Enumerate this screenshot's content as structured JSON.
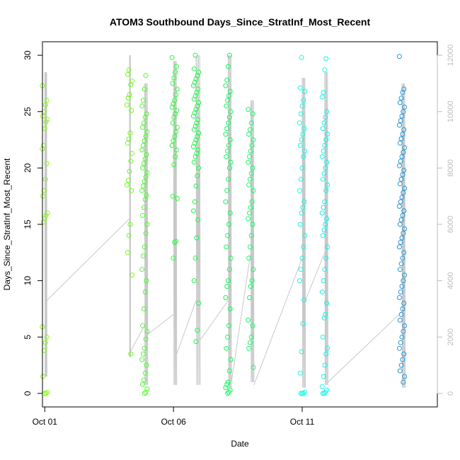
{
  "chart_data": {
    "type": "scatter",
    "title": "ATOM3 Southbound Days_Since_StratInf_Most_Recent",
    "xlabel": "Date",
    "ylabel": "Days_Since_StratInf_Most_Recent",
    "xlim": [
      "2014-09-30T21:50",
      "2014-10-16T06:00"
    ],
    "ylim": [
      -1.2,
      31.2
    ],
    "y2lim": [
      -480,
      12480
    ],
    "x_ticks": [
      {
        "label": "Oct 01",
        "date": "2014-10-01"
      },
      {
        "label": "Oct 06",
        "date": "2014-10-06"
      },
      {
        "label": "Oct 11",
        "date": "2014-10-11"
      }
    ],
    "y_ticks": [
      0,
      5,
      10,
      15,
      20,
      25,
      30
    ],
    "y2_ticks": [
      0,
      2000,
      4000,
      6000,
      8000,
      10000,
      12000
    ],
    "grid": false,
    "legend": "none",
    "marker": "open-circle",
    "line_color": "#c8c8c8",
    "point_colors_note_hex": [
      "#7fff00",
      "#00ff7f",
      "#00ffff",
      "#0080ff"
    ],
    "point_groups": [
      {
        "date": "2014-10-01T00:00",
        "color": "#84fb14",
        "values": [
          27.3,
          26.0,
          25.6,
          25.0,
          24.6,
          24.3,
          24.1,
          23.5,
          22.0,
          21.7,
          20.4,
          19.0,
          18.0,
          17.5,
          16.0,
          15.8,
          15.5,
          15.2,
          5.9,
          5.0,
          4.5,
          3.8,
          1.5,
          0.1,
          0.0,
          0.0
        ]
      },
      {
        "date": "2014-10-04T07:00",
        "color": "#6ffb1e",
        "values": [
          28.7,
          28.3,
          27.7,
          27.4,
          26.5,
          26.2,
          25.6,
          25.1,
          23.1,
          22.6,
          22.2,
          21.3,
          20.6,
          19.7,
          18.9,
          18.5,
          18.0,
          15.0,
          14.0,
          12.5,
          10.5,
          3.5
        ]
      },
      {
        "date": "2014-10-04T21:00",
        "color": "#4cfb2d",
        "values": [
          28.2,
          27.0,
          26.0,
          25.5,
          24.8,
          24.5,
          24.0,
          23.6,
          23.2,
          22.8,
          22.4,
          22.0,
          21.6,
          21.2,
          20.8,
          20.4,
          20.0,
          19.6,
          19.2,
          18.8,
          18.4,
          18.0,
          17.6,
          17.2,
          16.5,
          15.8,
          15.0,
          14.2,
          13.0,
          12.2,
          11.0,
          10.0,
          9.0,
          7.5,
          6.0,
          5.5,
          4.8,
          4.0,
          3.5,
          3.0,
          2.5,
          1.8,
          1.2,
          0.8,
          0.4,
          0.1,
          0.0
        ]
      },
      {
        "date": "2014-10-06T01:00",
        "color": "#2cfb3d",
        "values": [
          29.8,
          29.0,
          28.5,
          28.0,
          27.5,
          27.0,
          26.5,
          26.0,
          25.7,
          25.4,
          25.1,
          24.8,
          24.5,
          24.0,
          23.6,
          23.2,
          22.8,
          22.4,
          22.0,
          21.6,
          21.0,
          20.3,
          17.5,
          17.3,
          13.5,
          13.4,
          12.0
        ]
      },
      {
        "date": "2014-10-06T21:00",
        "color": "#1ffb4a",
        "values": [
          30.0,
          28.8,
          28.5,
          28.2,
          27.9,
          27.6,
          27.3,
          27.0,
          26.7,
          26.4,
          26.1,
          25.8,
          25.5,
          25.2,
          24.9,
          24.6,
          24.3,
          24.0,
          23.7,
          23.4,
          23.1,
          22.8,
          22.5,
          22.2,
          21.9,
          21.6,
          21.3,
          21.0,
          20.5,
          20.0,
          19.3,
          18.4,
          17.0,
          16.2,
          15.4,
          13.8,
          12.0,
          10.0,
          8.0,
          5.6,
          4.6
        ]
      },
      {
        "date": "2014-10-08T03:00",
        "color": "#0ffb5e",
        "values": [
          30.0,
          29.0,
          27.8,
          27.3,
          26.8,
          26.4,
          26.0,
          25.5,
          25.0,
          24.5,
          24.0,
          23.5,
          23.0,
          22.5,
          22.0,
          21.5,
          21.0,
          20.5,
          20.0,
          19.0,
          18.0,
          17.0,
          16.0,
          15.0,
          14.0,
          13.0,
          12.0,
          11.0,
          10.0,
          9.5,
          8.5,
          7.5,
          6.0,
          5.0,
          4.0,
          3.0,
          2.0,
          1.0,
          0.8,
          0.5,
          0.3,
          0.1,
          0.0
        ]
      },
      {
        "date": "2014-10-09T00:00",
        "color": "#14fb6e",
        "values": [
          25.2,
          24.8,
          24.0,
          23.4,
          23.0,
          22.5,
          22.0,
          21.5,
          21.0,
          20.5,
          20.0,
          19.5,
          19.0,
          18.5,
          18.0,
          17.0,
          16.5,
          16.0,
          15.5,
          15.0,
          14.0,
          13.0,
          12.0,
          11.0,
          10.0,
          9.5,
          8.5,
          6.5,
          6.0,
          5.0,
          4.5,
          4.0,
          2.3
        ]
      },
      {
        "date": "2014-10-11T00:00",
        "color": "#10fbe3",
        "values": [
          29.8,
          27.1,
          26.8,
          26.0,
          25.5,
          24.8,
          24.0,
          23.5,
          23.0,
          22.5,
          22.0,
          21.5,
          21.0,
          20.0,
          19.0,
          18.0,
          17.0,
          16.5,
          16.0,
          15.0,
          14.0,
          13.0,
          12.0,
          11.0,
          10.0,
          8.3,
          6.2,
          3.7,
          1.8,
          0.1,
          0.0,
          0.0,
          0.0
        ]
      },
      {
        "date": "2014-10-11T21:00",
        "color": "#18f1ea",
        "values": [
          29.7,
          28.7,
          26.7,
          26.3,
          25.0,
          24.5,
          24.0,
          23.5,
          23.0,
          22.5,
          22.0,
          21.5,
          21.0,
          20.5,
          20.0,
          19.5,
          19.0,
          18.5,
          18.0,
          17.0,
          16.5,
          16.0,
          15.5,
          15.0,
          14.5,
          14.0,
          13.0,
          12.0,
          11.0,
          10.0,
          9.0,
          8.0,
          7.0,
          6.7,
          5.0,
          4.0,
          3.5,
          2.5,
          1.5,
          0.6,
          0.3,
          0.1,
          0.0,
          0.0
        ]
      },
      {
        "date": "2014-10-14T21:00",
        "color": "#2098e0",
        "values": [
          29.9,
          27.0,
          26.7,
          26.2,
          25.8,
          25.4,
          25.0,
          24.6,
          24.2,
          23.8,
          23.4,
          23.0,
          22.6,
          22.2,
          21.8,
          21.4,
          21.0,
          20.6,
          20.2,
          19.8,
          19.4,
          19.0,
          18.6,
          18.2,
          17.8,
          17.4,
          17.0,
          16.6,
          16.2,
          15.8,
          15.4,
          15.0,
          14.6,
          14.2,
          13.8,
          13.4,
          13.0,
          12.5,
          12.0,
          11.5,
          11.0,
          10.5,
          10.0,
          9.5,
          9.0,
          8.5,
          8.0,
          7.5,
          7.0,
          6.5,
          6.0,
          5.5,
          5.0,
          4.5,
          4.0,
          3.5,
          3.0,
          2.5,
          2.0,
          1.5,
          1.0
        ]
      }
    ],
    "line_secondary_note": "thin grey line plotted against the right-hand axis",
    "line_segments": [
      {
        "date_start": "2014-10-01T00:00",
        "date_end": "2014-10-01T02:00",
        "y2_max": 11400,
        "y2_min": 600
      },
      {
        "date_start": "2014-10-01T02:00",
        "date_end": "2014-10-04T07:00",
        "y2_from": 3300,
        "y2_to": 6200
      },
      {
        "date_start": "2014-10-04T07:00",
        "date_end": "2014-10-04T08:00",
        "y2_max": 12000,
        "y2_min": 1300
      },
      {
        "date_start": "2014-10-04T08:00",
        "date_end": "2014-10-04T21:00",
        "y2_from": 1500,
        "y2_to": 2400
      },
      {
        "date_start": "2014-10-04T21:00",
        "date_end": "2014-10-05T00:00",
        "y2_max": 11000,
        "y2_min": 300
      },
      {
        "date_start": "2014-10-05T00:00",
        "date_end": "2014-10-06T00:00",
        "y2_from": 2100,
        "y2_to": 2800
      },
      {
        "date_start": "2014-10-06T00:00",
        "date_end": "2014-10-06T03:00",
        "y2_max": 11800,
        "y2_min": 300
      },
      {
        "date_start": "2014-10-06T03:00",
        "date_end": "2014-10-06T21:00",
        "y2_from": 1400,
        "y2_to": 3300
      },
      {
        "date_start": "2014-10-06T21:00",
        "date_end": "2014-10-07T01:00",
        "y2_max": 12000,
        "y2_min": 300
      },
      {
        "date_start": "2014-10-07T01:00",
        "date_end": "2014-10-08T03:00",
        "y2_from": 1900,
        "y2_to": 3300
      },
      {
        "date_start": "2014-10-08T03:00",
        "date_end": "2014-10-08T06:00",
        "y2_max": 12000,
        "y2_min": 200
      },
      {
        "date_start": "2014-10-08T06:00",
        "date_end": "2014-10-09T00:00",
        "y2_from": 400,
        "y2_to": 5000
      },
      {
        "date_start": "2014-10-09T00:00",
        "date_end": "2014-10-09T03:00",
        "y2_max": 10400,
        "y2_min": 400
      },
      {
        "date_start": "2014-10-09T03:00",
        "date_end": "2014-10-11T00:00",
        "y2_from": 300,
        "y2_to": 4800
      },
      {
        "date_start": "2014-10-11T00:00",
        "date_end": "2014-10-11T03:00",
        "y2_max": 11200,
        "y2_min": 200
      },
      {
        "date_start": "2014-10-11T03:00",
        "date_end": "2014-10-11T21:00",
        "y2_from": 3300,
        "y2_to": 5000
      },
      {
        "date_start": "2014-10-11T21:00",
        "date_end": "2014-10-12T00:00",
        "y2_max": 11400,
        "y2_min": 300
      },
      {
        "date_start": "2014-10-12T00:00",
        "date_end": "2014-10-14T21:00",
        "y2_from": 400,
        "y2_to": 2900
      },
      {
        "date_start": "2014-10-14T21:00",
        "date_end": "2014-10-15T00:00",
        "y2_max": 11000,
        "y2_min": 200
      }
    ]
  }
}
